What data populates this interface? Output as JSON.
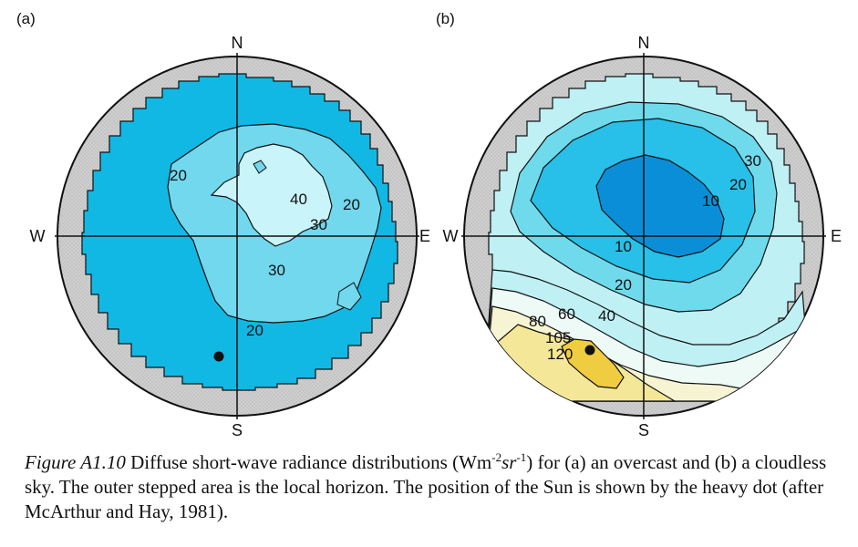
{
  "panels": [
    {
      "label": "(a)",
      "north": "N",
      "south": "S",
      "west": "W",
      "east": "E",
      "contour_labels": [
        "20",
        "40",
        "20",
        "30",
        "30",
        "20"
      ],
      "colors": {
        "horizon": "#c8c8c8",
        "sky": "#12b8e4",
        "zone_30": "#72d8ee",
        "zone_40": "#c8f4fa"
      }
    },
    {
      "label": "(b)",
      "north": "N",
      "south": "S",
      "west": "W",
      "east": "E",
      "contour_labels": [
        "30",
        "20",
        "10",
        "10",
        "20",
        "40",
        "60",
        "80",
        "105",
        "120"
      ],
      "colors": {
        "horizon": "#c8c8c8",
        "level_30": "#bff0f4",
        "level_20": "#6fdaec",
        "level_10": "#28c0e8",
        "level_5": "#0a8ed8",
        "level_60": "#eefaf6",
        "level_80": "#f6f4d2",
        "level_105": "#f4e898",
        "level_120": "#f0cc40"
      }
    }
  ],
  "caption": {
    "figure_number": "Figure A1.10",
    "text_before_unit": " Diffuse short-wave radiance distributions (Wm",
    "exp1": "-2",
    "unit_sr": "sr",
    "exp2": "-1",
    "text_after_unit": ") for (a) an overcast and (b) a cloudless sky. The outer stepped area is the local horizon. The position of the Sun is shown by the heavy dot (after McArthur and Hay, 1981)."
  }
}
